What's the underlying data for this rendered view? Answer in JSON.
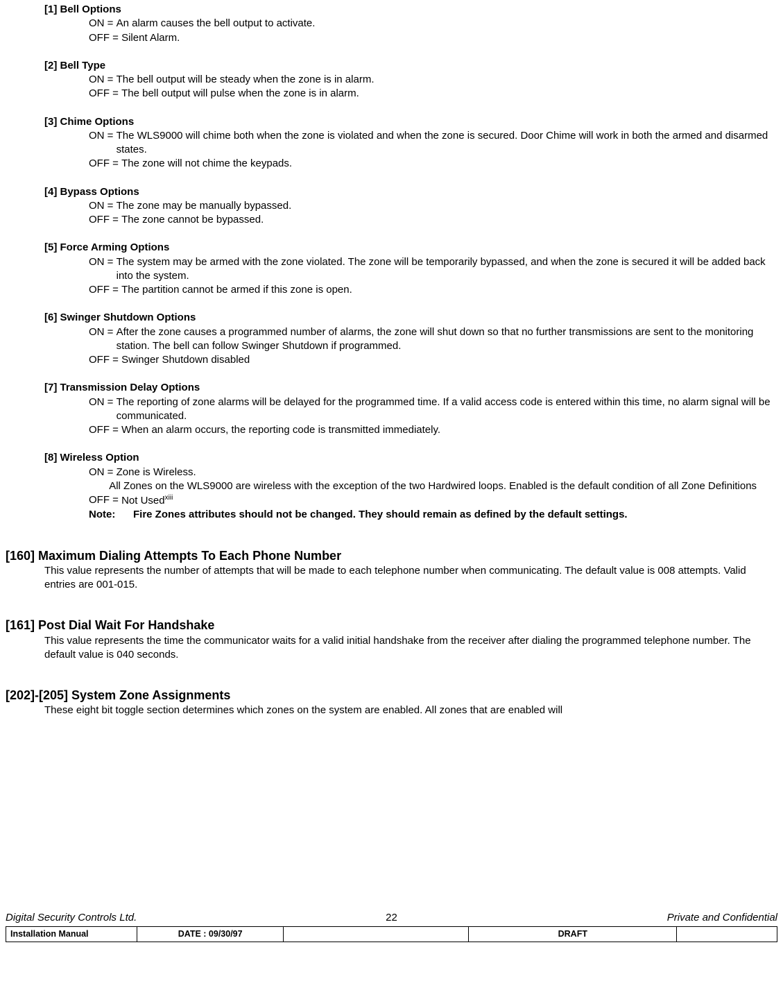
{
  "options": [
    {
      "num": "[1]",
      "title": "Bell Options",
      "on": "An alarm causes the bell output to activate.",
      "off": "Silent Alarm."
    },
    {
      "num": "[2]",
      "title": "Bell Type",
      "on": "The bell output will be steady when the zone is in alarm.",
      "off": "The bell output will pulse when the zone is in alarm."
    },
    {
      "num": "[3]",
      "title": "Chime Options",
      "on": "The WLS9000 will chime both when the zone is violated and when the zone is secured.  Door Chime will work in both the armed and disarmed states.",
      "off": "The zone will not chime the keypads."
    },
    {
      "num": "[4]",
      "title": "Bypass Options",
      "on": " The zone may be manually bypassed.",
      "off": "The zone cannot be bypassed."
    },
    {
      "num": "[5]",
      "title": "Force Arming Options",
      "on": "The system may be armed with the zone violated.  The zone will be temporarily bypassed, and when the zone is secured it will be added back into the system.",
      "off": "The partition cannot be armed if this zone is open."
    },
    {
      "num": "[6]",
      "title": "Swinger Shutdown Options",
      "on": "After the zone causes a programmed number of alarms, the zone will shut down so that no further transmissions are sent to the monitoring station.  The bell can follow Swinger Shutdown if programmed.",
      "off": "Swinger Shutdown disabled"
    },
    {
      "num": "[7]",
      "title": "Transmission Delay Options",
      "on": "The reporting of zone alarms will be delayed for the programmed time.  If a valid access code is entered within this time, no alarm signal will be communicated.",
      "off": "When an alarm occurs, the reporting code is transmitted immediately."
    },
    {
      "num": "[8]",
      "title": "Wireless Option",
      "on": "Zone is Wireless.",
      "on_extra": "All Zones on the WLS9000 are wireless with the exception of the two Hardwired loops.  Enabled is the default condition of all Zone Definitions",
      "off": " Not Used",
      "off_sup": "xiii",
      "note_label": "Note:",
      "note_text": "Fire Zones attributes should not be changed.  They should remain as defined by the default settings."
    }
  ],
  "sections": [
    {
      "num": "[160]",
      "title": "Maximum Dialing Attempts To Each Phone Number",
      "body": "This value represents the number of attempts that will be made to each telephone number when communicating.  The default value is 008 attempts.  Valid entries are 001-015."
    },
    {
      "num": "[161]",
      "title": "Post Dial Wait For Handshake",
      "body": "This value represents the time the communicator waits for a valid initial handshake from the receiver after dialing the programmed telephone number.  The default value is 040 seconds."
    },
    {
      "num": "[202]-[205]",
      "title": "System Zone Assignments",
      "body": "These eight bit toggle section determines which zones on the system are enabled.  All zones that are enabled will"
    }
  ],
  "on_label": "ON = ",
  "off_label": "OFF = ",
  "footer": {
    "company": "Digital Security Controls Ltd.",
    "page": "22",
    "confidential": "Private and Confidential",
    "manual": "Installation Manual",
    "date_label": "DATE :  09/30/97",
    "draft": "DRAFT"
  }
}
